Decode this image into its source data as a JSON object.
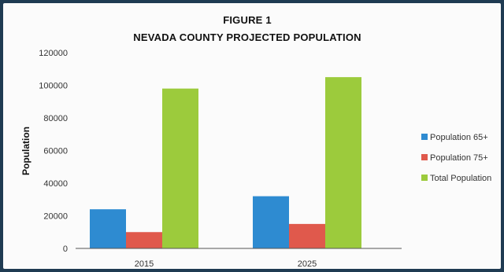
{
  "chart_data": {
    "type": "bar",
    "figure_label": "FIGURE 1",
    "title": "NEVADA COUNTY PROJECTED POPULATION",
    "xlabel": "",
    "ylabel": "Population",
    "categories": [
      "2015",
      "2025"
    ],
    "series": [
      {
        "name": "Population 65+",
        "values": [
          24000,
          32000
        ],
        "color": "#2e8bd1"
      },
      {
        "name": "Population 75+",
        "values": [
          10000,
          15000
        ],
        "color": "#e0594c"
      },
      {
        "name": "Total Population",
        "values": [
          98000,
          105000
        ],
        "color": "#9ccb3c"
      }
    ],
    "ylim": [
      0,
      120000
    ],
    "yticks": [
      0,
      20000,
      40000,
      60000,
      80000,
      100000,
      120000
    ],
    "legend_position": "right",
    "grid": false
  }
}
